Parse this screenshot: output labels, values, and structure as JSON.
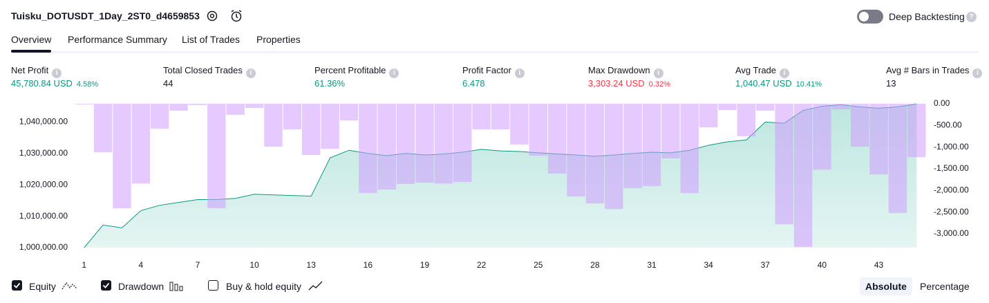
{
  "header": {
    "title": "Tuisku_DOTUSDT_1Day_2ST0_d4659853",
    "toggle_label": "Deep Backtesting"
  },
  "tabs": [
    "Overview",
    "Performance Summary",
    "List of Trades",
    "Properties"
  ],
  "metrics": [
    {
      "label": "Net Profit",
      "value": "45,780.84 USD",
      "extra": "4.58%"
    },
    {
      "label": "Total Closed Trades",
      "value": "44"
    },
    {
      "label": "Percent Profitable",
      "value": "61.36%"
    },
    {
      "label": "Profit Factor",
      "value": "6.478"
    },
    {
      "label": "Max Drawdown",
      "value": "3,303.24 USD",
      "extra": "0.32%"
    },
    {
      "label": "Avg Trade",
      "value": "1,040.47 USD",
      "extra": "10.41%"
    },
    {
      "label": "Avg # Bars in Trades",
      "value": "13"
    }
  ],
  "chart_data": {
    "type": "combo",
    "x": [
      1,
      2,
      3,
      4,
      5,
      6,
      7,
      8,
      9,
      10,
      11,
      12,
      13,
      14,
      15,
      16,
      17,
      18,
      19,
      20,
      21,
      22,
      23,
      24,
      25,
      26,
      27,
      28,
      29,
      30,
      31,
      32,
      33,
      34,
      35,
      36,
      37,
      38,
      39,
      40,
      41,
      42,
      43,
      44,
      45
    ],
    "xlim": [
      0.5,
      45.5
    ],
    "xticks": [
      1,
      4,
      7,
      10,
      13,
      16,
      19,
      22,
      25,
      28,
      31,
      34,
      37,
      40,
      43
    ],
    "ylim": [
      1000000,
      1045800
    ],
    "yticks": [
      {
        "value": 1000000,
        "label": "1,000,000.00"
      },
      {
        "value": 1010000,
        "label": "1,010,000.00"
      },
      {
        "value": 1020000,
        "label": "1,020,000.00"
      },
      {
        "value": 1030000,
        "label": "1,030,000.00"
      },
      {
        "value": 1040000,
        "label": "1,040,000.00"
      }
    ],
    "y2lim": [
      -3320,
      0
    ],
    "y2ticks": [
      {
        "value": 0,
        "label": "0.00"
      },
      {
        "value": -500,
        "label": "-500.00"
      },
      {
        "value": -1000,
        "label": "-1,000.00"
      },
      {
        "value": -1500,
        "label": "-1,500.00"
      },
      {
        "value": -2000,
        "label": "-2,000.00"
      },
      {
        "value": -2500,
        "label": "-2,500.00"
      },
      {
        "value": -3000,
        "label": "-3,000.00"
      }
    ],
    "series": [
      {
        "name": "Equity",
        "color": "#089981",
        "type": "area",
        "values": [
          1000000,
          1007200,
          1006300,
          1011800,
          1013500,
          1014400,
          1015300,
          1015300,
          1015700,
          1017000,
          1016800,
          1016600,
          1016400,
          1028600,
          1031000,
          1030000,
          1029300,
          1030000,
          1029500,
          1029800,
          1030400,
          1031300,
          1030800,
          1030600,
          1030200,
          1029800,
          1029500,
          1029100,
          1029500,
          1030000,
          1030400,
          1030200,
          1031000,
          1032600,
          1033700,
          1034300,
          1040000,
          1039600,
          1043700,
          1045000,
          1045500,
          1044800,
          1044400,
          1044800,
          1045780
        ]
      },
      {
        "name": "Drawdown",
        "color": "#cf9cff",
        "type": "bar",
        "axis": "y2",
        "values": [
          -15,
          -1120,
          -2410,
          -1840,
          -575,
          -160,
          -30,
          -2410,
          -255,
          -95,
          -990,
          -590,
          -1180,
          -1040,
          -385,
          -2060,
          -1980,
          -1850,
          -1820,
          -1840,
          -1805,
          -590,
          -590,
          -940,
          -1200,
          -1610,
          -2140,
          -2300,
          -2430,
          -1950,
          -1900,
          -1260,
          -2060,
          -545,
          -145,
          -750,
          -160,
          -2780,
          -3303,
          -1520,
          -130,
          -990,
          -1630,
          -2520,
          -1230
        ]
      }
    ]
  },
  "controls": {
    "buy_hold_label": "Buy & hold equity",
    "modes": [
      "Absolute",
      "Percentage"
    ]
  }
}
